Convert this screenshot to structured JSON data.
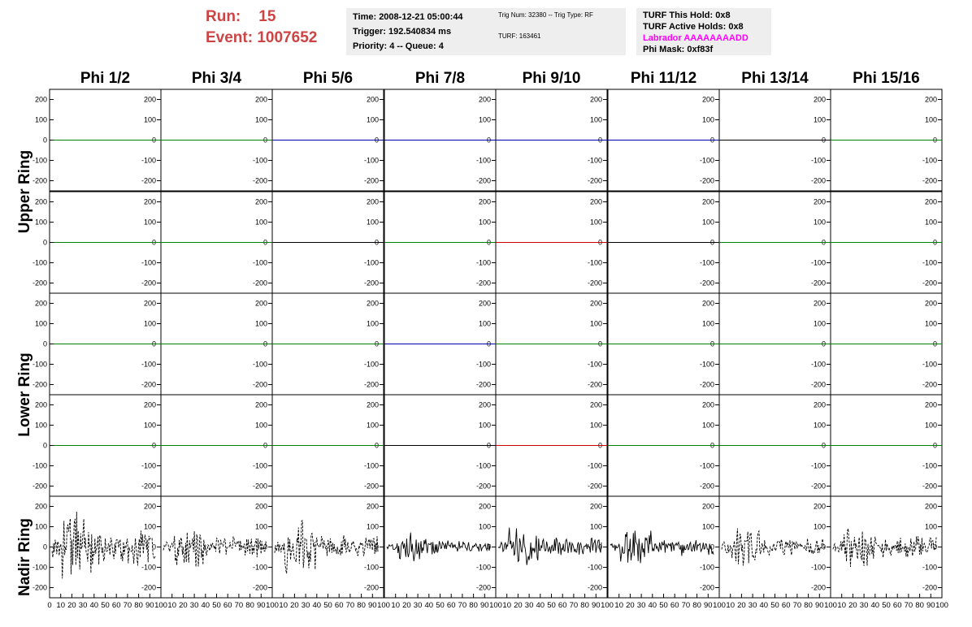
{
  "header": {
    "run_label": "Run:",
    "run_value": "15",
    "event_label": "Event:",
    "event_value": "1007652",
    "run_color": "#cc4444",
    "time": "Time: 2008-12-21 05:00:44",
    "trigger": "Trigger: 192.540834 ms",
    "priority": "Priority: 4 -- Queue: 4",
    "trig_num": "Trig Num: 32380 -- Trig Type: RF",
    "turf": "TURF: 163461",
    "turf_this_hold": "TURF This Hold: 0x8",
    "turf_active_holds": "TURF Active Holds: 0x8",
    "labrador": "Labrador AAAAAAAADD",
    "phi_mask": "Phi Mask: 0xf83f"
  },
  "columns": [
    "Phi 1/2",
    "Phi 3/4",
    "Phi 5/6",
    "Phi 7/8",
    "Phi 9/10",
    "Phi 11/12",
    "Phi 13/14",
    "Phi 15/16"
  ],
  "rings": [
    "Upper Ring",
    "Lower Ring",
    "Nadir Ring"
  ],
  "chart_data": {
    "type": "line",
    "ylim": [
      -250,
      250
    ],
    "yticks": [
      -200,
      -100,
      0,
      100,
      200
    ],
    "xlim": [
      0,
      100
    ],
    "xtick_labels": [
      "0",
      "10",
      "20",
      "30",
      "40",
      "50",
      "60",
      "70",
      "80",
      "90",
      "100"
    ],
    "rows": [
      {
        "ring": "Upper Ring",
        "series_colors": [
          "#008000",
          "#008000",
          "#0000aa",
          "#0000aa",
          "#0000aa",
          "#0000aa",
          "#000000",
          "#008000"
        ],
        "amplitude": [
          0,
          0,
          0,
          0,
          0,
          0,
          0,
          0
        ]
      },
      {
        "ring": "Upper Ring",
        "series_colors": [
          "#008000",
          "#008000",
          "#000000",
          "#008000",
          "#cc0000",
          "#000000",
          "#008000",
          "#008000"
        ],
        "amplitude": [
          0,
          0,
          0,
          0,
          0,
          0,
          0,
          0
        ]
      },
      {
        "ring": "Lower Ring",
        "series_colors": [
          "#008000",
          "#008000",
          "#008000",
          "#0000aa",
          "#008000",
          "#008000",
          "#008000",
          "#008000"
        ],
        "amplitude": [
          0,
          0,
          0,
          0,
          0,
          0,
          0,
          0
        ]
      },
      {
        "ring": "Lower Ring",
        "series_colors": [
          "#008000",
          "#008000",
          "#008000",
          "#000000",
          "#cc0000",
          "#008000",
          "#008000",
          "#008000"
        ],
        "amplitude": [
          0,
          0,
          0,
          0,
          0,
          0,
          0,
          0
        ]
      },
      {
        "ring": "Nadir Ring",
        "series_colors": [
          "#000000",
          "#000000",
          "#000000",
          "#000000",
          "#000000",
          "#000000",
          "#000000",
          "#000000"
        ],
        "dashed": [
          true,
          true,
          true,
          false,
          false,
          false,
          true,
          true
        ],
        "amplitude": [
          220,
          130,
          140,
          90,
          110,
          100,
          110,
          140
        ]
      }
    ]
  }
}
